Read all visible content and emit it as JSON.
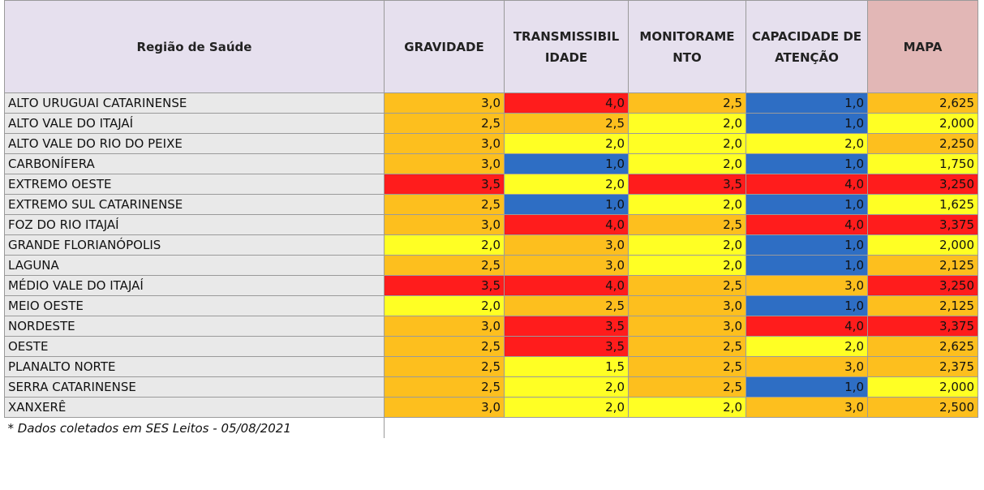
{
  "headers": {
    "region": "Região de Saúde",
    "gravidade": "GRAVIDADE",
    "transmissibilidade": "TRANSMISSIBIL IDADE",
    "monitoramento": "MONITORAME NTO",
    "capacidade": "CAPACIDADE DE ATENÇÃO",
    "mapa": "MAPA"
  },
  "colors": {
    "yellow": "#ffff24",
    "orange": "#fdbf1e",
    "red": "#ff1c1c",
    "blue": "#2e6ec4",
    "name_bg": "#e9e9e9",
    "header_bg": "#e6e0ee",
    "mapa_header_bg": "#e2b7b6"
  },
  "rows": [
    {
      "name": "ALTO URUGUAI CATARINENSE",
      "values": [
        "3,0",
        "4,0",
        "2,5",
        "1,0",
        "2,625"
      ],
      "levels": [
        "orange",
        "red",
        "orange",
        "blue",
        "orange"
      ]
    },
    {
      "name": "ALTO VALE DO ITAJAÍ",
      "values": [
        "2,5",
        "2,5",
        "2,0",
        "1,0",
        "2,000"
      ],
      "levels": [
        "orange",
        "orange",
        "yellow",
        "blue",
        "yellow"
      ]
    },
    {
      "name": "ALTO VALE DO RIO DO PEIXE",
      "values": [
        "3,0",
        "2,0",
        "2,0",
        "2,0",
        "2,250"
      ],
      "levels": [
        "orange",
        "yellow",
        "yellow",
        "yellow",
        "orange"
      ]
    },
    {
      "name": "CARBONÍFERA",
      "values": [
        "3,0",
        "1,0",
        "2,0",
        "1,0",
        "1,750"
      ],
      "levels": [
        "orange",
        "blue",
        "yellow",
        "blue",
        "yellow"
      ]
    },
    {
      "name": "EXTREMO OESTE",
      "values": [
        "3,5",
        "2,0",
        "3,5",
        "4,0",
        "3,250"
      ],
      "levels": [
        "red",
        "yellow",
        "red",
        "red",
        "red"
      ]
    },
    {
      "name": "EXTREMO SUL CATARINENSE",
      "values": [
        "2,5",
        "1,0",
        "2,0",
        "1,0",
        "1,625"
      ],
      "levels": [
        "orange",
        "blue",
        "yellow",
        "blue",
        "yellow"
      ]
    },
    {
      "name": "FOZ DO RIO ITAJAÍ",
      "values": [
        "3,0",
        "4,0",
        "2,5",
        "4,0",
        "3,375"
      ],
      "levels": [
        "orange",
        "red",
        "orange",
        "red",
        "red"
      ]
    },
    {
      "name": "GRANDE FLORIANÓPOLIS",
      "values": [
        "2,0",
        "3,0",
        "2,0",
        "1,0",
        "2,000"
      ],
      "levels": [
        "yellow",
        "orange",
        "yellow",
        "blue",
        "yellow"
      ]
    },
    {
      "name": "LAGUNA",
      "values": [
        "2,5",
        "3,0",
        "2,0",
        "1,0",
        "2,125"
      ],
      "levels": [
        "orange",
        "orange",
        "yellow",
        "blue",
        "orange"
      ]
    },
    {
      "name": "MÉDIO VALE DO ITAJAÍ",
      "values": [
        "3,5",
        "4,0",
        "2,5",
        "3,0",
        "3,250"
      ],
      "levels": [
        "red",
        "red",
        "orange",
        "orange",
        "red"
      ]
    },
    {
      "name": "MEIO OESTE",
      "values": [
        "2,0",
        "2,5",
        "3,0",
        "1,0",
        "2,125"
      ],
      "levels": [
        "yellow",
        "orange",
        "orange",
        "blue",
        "orange"
      ]
    },
    {
      "name": "NORDESTE",
      "values": [
        "3,0",
        "3,5",
        "3,0",
        "4,0",
        "3,375"
      ],
      "levels": [
        "orange",
        "red",
        "orange",
        "red",
        "red"
      ]
    },
    {
      "name": "OESTE",
      "values": [
        "2,5",
        "3,5",
        "2,5",
        "2,0",
        "2,625"
      ],
      "levels": [
        "orange",
        "red",
        "orange",
        "yellow",
        "orange"
      ]
    },
    {
      "name": "PLANALTO NORTE",
      "values": [
        "2,5",
        "1,5",
        "2,5",
        "3,0",
        "2,375"
      ],
      "levels": [
        "orange",
        "yellow",
        "orange",
        "orange",
        "orange"
      ]
    },
    {
      "name": "SERRA CATARINENSE",
      "values": [
        "2,5",
        "2,0",
        "2,5",
        "1,0",
        "2,000"
      ],
      "levels": [
        "orange",
        "yellow",
        "orange",
        "blue",
        "yellow"
      ]
    },
    {
      "name": "XANXERÊ",
      "values": [
        "3,0",
        "2,0",
        "2,0",
        "3,0",
        "2,500"
      ],
      "levels": [
        "orange",
        "yellow",
        "yellow",
        "orange",
        "orange"
      ]
    }
  ],
  "footnote": "* Dados coletados em SES Leitos - 05/08/2021"
}
